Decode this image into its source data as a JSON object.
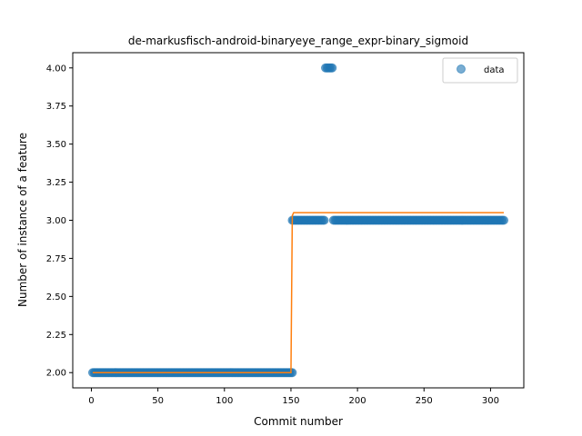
{
  "chart_data": {
    "type": "scatter",
    "title": "de-markusfisch-android-binaryeye_range_expr-binary_sigmoid",
    "xlabel": "Commit number",
    "ylabel": "Number of instance of a feature",
    "xlim": [
      -14,
      325
    ],
    "ylim": [
      1.9,
      4.1
    ],
    "x_ticks": [
      0,
      50,
      100,
      150,
      200,
      250,
      300
    ],
    "y_ticks": [
      2.0,
      2.25,
      2.5,
      2.75,
      3.0,
      3.25,
      3.5,
      3.75,
      4.0
    ],
    "y_tick_labels": [
      "2.00",
      "2.25",
      "2.50",
      "2.75",
      "3.00",
      "3.25",
      "3.50",
      "3.75",
      "4.00"
    ],
    "grid": false,
    "legend": {
      "placement": "top-right",
      "entries": [
        "data"
      ]
    },
    "series": [
      {
        "name": "data",
        "kind": "points",
        "color": "#1f77b4",
        "segments": [
          {
            "x_start": 1,
            "x_end": 151,
            "y": 2.0
          },
          {
            "x_start": 151,
            "x_end": 175,
            "y": 3.0
          },
          {
            "x_start": 176,
            "x_end": 181,
            "y": 4.0
          },
          {
            "x_start": 182,
            "x_end": 310,
            "y": 3.0
          }
        ]
      },
      {
        "kind": "line",
        "color": "#ff7f0e",
        "x": [
          1,
          149,
          150,
          151,
          152,
          310
        ],
        "y": [
          2.0,
          2.0,
          2.0,
          3.03,
          3.05,
          3.05
        ]
      }
    ]
  }
}
